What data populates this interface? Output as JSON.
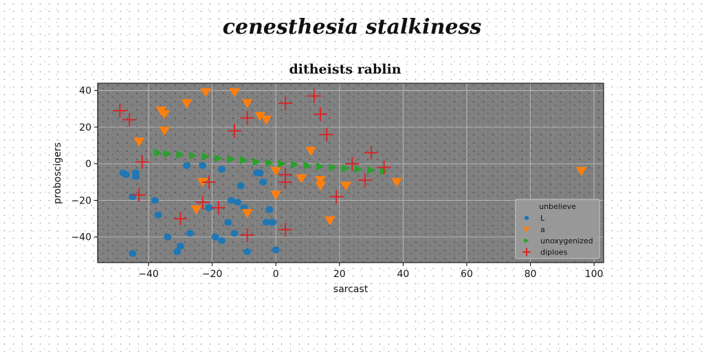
{
  "suptitle": "cenesthesia stalkiness",
  "chart_data": {
    "type": "scatter",
    "title": "ditheists rablin",
    "xlabel": "sarcast",
    "ylabel": "proboscigers",
    "xlim": [
      -56,
      103
    ],
    "ylim": [
      -54,
      44
    ],
    "xticks": [
      -40,
      -20,
      0,
      20,
      40,
      60,
      80,
      100
    ],
    "yticks": [
      -40,
      -20,
      0,
      20,
      40
    ],
    "grid": true,
    "legend_title": "unbelieve",
    "legend_position": "lower-right",
    "series": [
      {
        "name": "L",
        "marker": "circle",
        "color": "#1f77b4",
        "points": [
          [
            -48,
            -5
          ],
          [
            -47,
            -6
          ],
          [
            -45,
            -18
          ],
          [
            -44,
            -5
          ],
          [
            -44,
            -7
          ],
          [
            -45,
            -49
          ],
          [
            -38,
            -20
          ],
          [
            -37,
            -28
          ],
          [
            -34,
            -40
          ],
          [
            -31,
            -48
          ],
          [
            -30,
            -45
          ],
          [
            -28,
            -1
          ],
          [
            -27,
            -38
          ],
          [
            -23,
            -1
          ],
          [
            -21,
            -24
          ],
          [
            -19,
            -40
          ],
          [
            -17,
            -3
          ],
          [
            -17,
            -42
          ],
          [
            -15,
            -32
          ],
          [
            -14,
            -20
          ],
          [
            -13,
            -38
          ],
          [
            -12,
            -21
          ],
          [
            -11,
            -12
          ],
          [
            -10,
            -24
          ],
          [
            -9,
            -48
          ],
          [
            -6,
            -5
          ],
          [
            -5,
            -5
          ],
          [
            -4,
            -10
          ],
          [
            -3,
            -32
          ],
          [
            -2,
            -25
          ],
          [
            -1,
            -32
          ],
          [
            0,
            -47
          ]
        ]
      },
      {
        "name": "a",
        "marker": "triangle-down",
        "color": "#ff7f0e",
        "points": [
          [
            -43,
            12
          ],
          [
            -36,
            29
          ],
          [
            -35,
            27
          ],
          [
            -35,
            18
          ],
          [
            -28,
            33
          ],
          [
            -25,
            -25
          ],
          [
            -23,
            -10
          ],
          [
            -22,
            39
          ],
          [
            -13,
            39
          ],
          [
            -9,
            33
          ],
          [
            -9,
            -27
          ],
          [
            -5,
            26
          ],
          [
            -3,
            24
          ],
          [
            0,
            -4
          ],
          [
            0,
            -17
          ],
          [
            8,
            -8
          ],
          [
            11,
            7
          ],
          [
            14,
            -12
          ],
          [
            14,
            -9
          ],
          [
            17,
            -31
          ],
          [
            22,
            -12
          ],
          [
            38,
            -10
          ],
          [
            96,
            -4
          ]
        ]
      },
      {
        "name": "unoxygenized",
        "marker": "triangle-right",
        "color": "#2ca02c",
        "points": [
          [
            -37,
            6
          ],
          [
            -34,
            5.5
          ],
          [
            -30,
            5
          ],
          [
            -26,
            4.5
          ],
          [
            -22,
            4
          ],
          [
            -18,
            3
          ],
          [
            -14,
            2.5
          ],
          [
            -10,
            2
          ],
          [
            -6,
            1
          ],
          [
            -2,
            0.5
          ],
          [
            2,
            0
          ],
          [
            6,
            -0.5
          ],
          [
            10,
            -1
          ],
          [
            14,
            -1.5
          ],
          [
            18,
            -2
          ],
          [
            22,
            -2.5
          ],
          [
            26,
            -3
          ],
          [
            30,
            -3.5
          ],
          [
            34,
            -4
          ]
        ]
      },
      {
        "name": "diploes",
        "marker": "plus",
        "color": "#d62728",
        "points": [
          [
            -49,
            29
          ],
          [
            -46,
            24
          ],
          [
            -42,
            1
          ],
          [
            -43,
            -17
          ],
          [
            -30,
            -30
          ],
          [
            -23,
            -21
          ],
          [
            -21,
            -10
          ],
          [
            -18,
            -24
          ],
          [
            -13,
            18
          ],
          [
            -9,
            25
          ],
          [
            -9,
            -39
          ],
          [
            3,
            -6
          ],
          [
            3,
            -10
          ],
          [
            3,
            -36
          ],
          [
            3,
            33
          ],
          [
            12,
            37
          ],
          [
            14,
            27
          ],
          [
            16,
            16
          ],
          [
            19,
            -18
          ],
          [
            24,
            0
          ],
          [
            28,
            -9
          ],
          [
            30,
            6
          ],
          [
            34,
            -2
          ]
        ]
      }
    ]
  }
}
